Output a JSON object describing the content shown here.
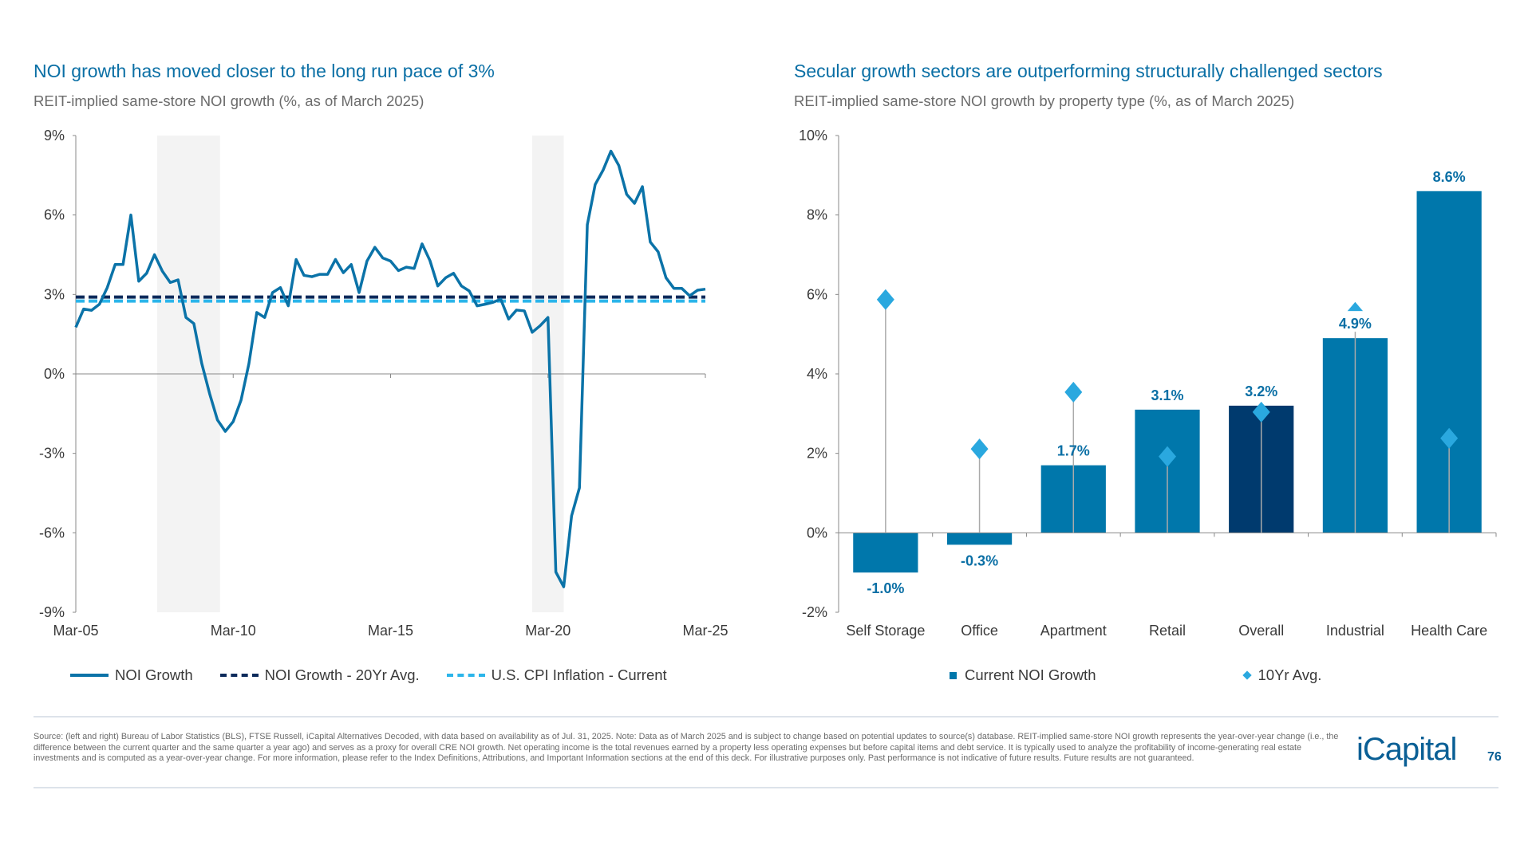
{
  "left": {
    "title": "NOI growth has moved closer to the long run pace of 3%",
    "subtitle": "REIT-implied same-store NOI growth (%, as of March 2025)"
  },
  "right": {
    "title": "Secular growth sectors are outperforming structurally challenged sectors",
    "subtitle": "REIT-implied same-store NOI growth by property type (%, as of March 2025)"
  },
  "chart_data": [
    {
      "type": "line",
      "x_start": "Mar-05",
      "x_end": "Mar-25",
      "x_frequency": "quarterly",
      "x_ticks": [
        "Mar-05",
        "Mar-10",
        "Mar-15",
        "Mar-20",
        "Mar-25"
      ],
      "y_ticks": [
        "9%",
        "6%",
        "3%",
        "0%",
        "-3%",
        "-6%",
        "-9%"
      ],
      "ylim": [
        -9,
        9
      ],
      "grid": false,
      "legend_position": "bottom",
      "shaded_periods": [
        [
          "Oct-07",
          "Oct-09"
        ],
        [
          "Sep-19",
          "Sep-20"
        ]
      ],
      "series": [
        {
          "name": "NOI Growth",
          "style": "solid",
          "color": "#0b73a8",
          "values": [
            1.76,
            2.45,
            2.4,
            2.63,
            3.26,
            4.13,
            4.13,
            6.0,
            3.5,
            3.8,
            4.5,
            3.88,
            3.45,
            3.55,
            2.13,
            1.9,
            0.4,
            -0.74,
            -1.74,
            -2.17,
            -1.8,
            -0.99,
            0.39,
            2.32,
            2.13,
            3.07,
            3.26,
            2.57,
            4.32,
            3.72,
            3.67,
            3.76,
            3.76,
            4.32,
            3.82,
            4.13,
            3.07,
            4.26,
            4.78,
            4.38,
            4.26,
            3.9,
            4.03,
            3.98,
            4.91,
            4.28,
            3.32,
            3.63,
            3.8,
            3.32,
            3.13,
            2.57,
            2.63,
            2.7,
            2.82,
            2.07,
            2.41,
            2.38,
            1.57,
            1.82,
            2.13,
            -7.48,
            -8.04,
            -5.36,
            -4.3,
            5.63,
            7.15,
            7.69,
            8.41,
            7.87,
            6.78,
            6.44,
            7.07,
            4.98,
            4.61,
            3.63,
            3.23,
            3.23,
            2.95,
            3.16,
            3.2
          ]
        },
        {
          "name": "NOI Growth - 20Yr Avg.",
          "style": "dashed",
          "color": "#0c2a5b",
          "value": 2.9
        },
        {
          "name": "U.S. CPI Inflation - Current",
          "style": "dashed",
          "color": "#2bb5ea",
          "value": 2.75
        }
      ]
    },
    {
      "type": "bar",
      "categories": [
        "Self Storage",
        "Office",
        "Apartment",
        "Retail",
        "Overall",
        "Industrial",
        "Health Care"
      ],
      "y_ticks": [
        "10%",
        "8%",
        "6%",
        "4%",
        "2%",
        "0%",
        "-2%"
      ],
      "ylim": [
        -2,
        10
      ],
      "grid": false,
      "legend_position": "bottom",
      "highlight_category": "Overall",
      "colors": {
        "bar": "#0077ab",
        "highlight": "#003a6e",
        "marker": "#2aa8df",
        "label": "#0a6fa5"
      },
      "series": [
        {
          "name": "Current NOI Growth",
          "type": "bar",
          "values": [
            -1.0,
            -0.3,
            1.7,
            3.1,
            3.2,
            4.9,
            8.6
          ],
          "labels": [
            "-1.0%",
            "-0.3%",
            "1.7%",
            "3.1%",
            "3.2%",
            "4.9%",
            "8.6%"
          ]
        },
        {
          "name": "10Yr Avg.",
          "type": "diamond",
          "values": [
            5.87,
            2.11,
            3.54,
            1.92,
            3.04,
            5.55,
            2.38
          ]
        }
      ]
    }
  ],
  "footer": {
    "source": "Source: (left and right) Bureau of Labor Statistics (BLS), FTSE Russell, iCapital Alternatives Decoded, with data based on availability as of Jul. 31, 2025. Note: Data as of March 2025 and is subject to change based on potential updates to source(s) database. REIT-implied same-store NOI growth represents the year-over-year change (i.e., the difference between the current quarter and the same quarter a year ago) and serves as a proxy for overall CRE NOI growth. Net operating income is the total revenues earned by a property less operating expenses but before capital items and debt service. It is typically used to analyze the profitability of income-generating real estate investments and is computed as a year-over-year change. For more information, please refer to the Index Definitions, Attributions, and Important Information sections at the end of this deck. For illustrative purposes only. Past performance is not indicative of future results. Future results are not guaranteed.",
    "logo": "iCapital",
    "page_number": "76"
  }
}
